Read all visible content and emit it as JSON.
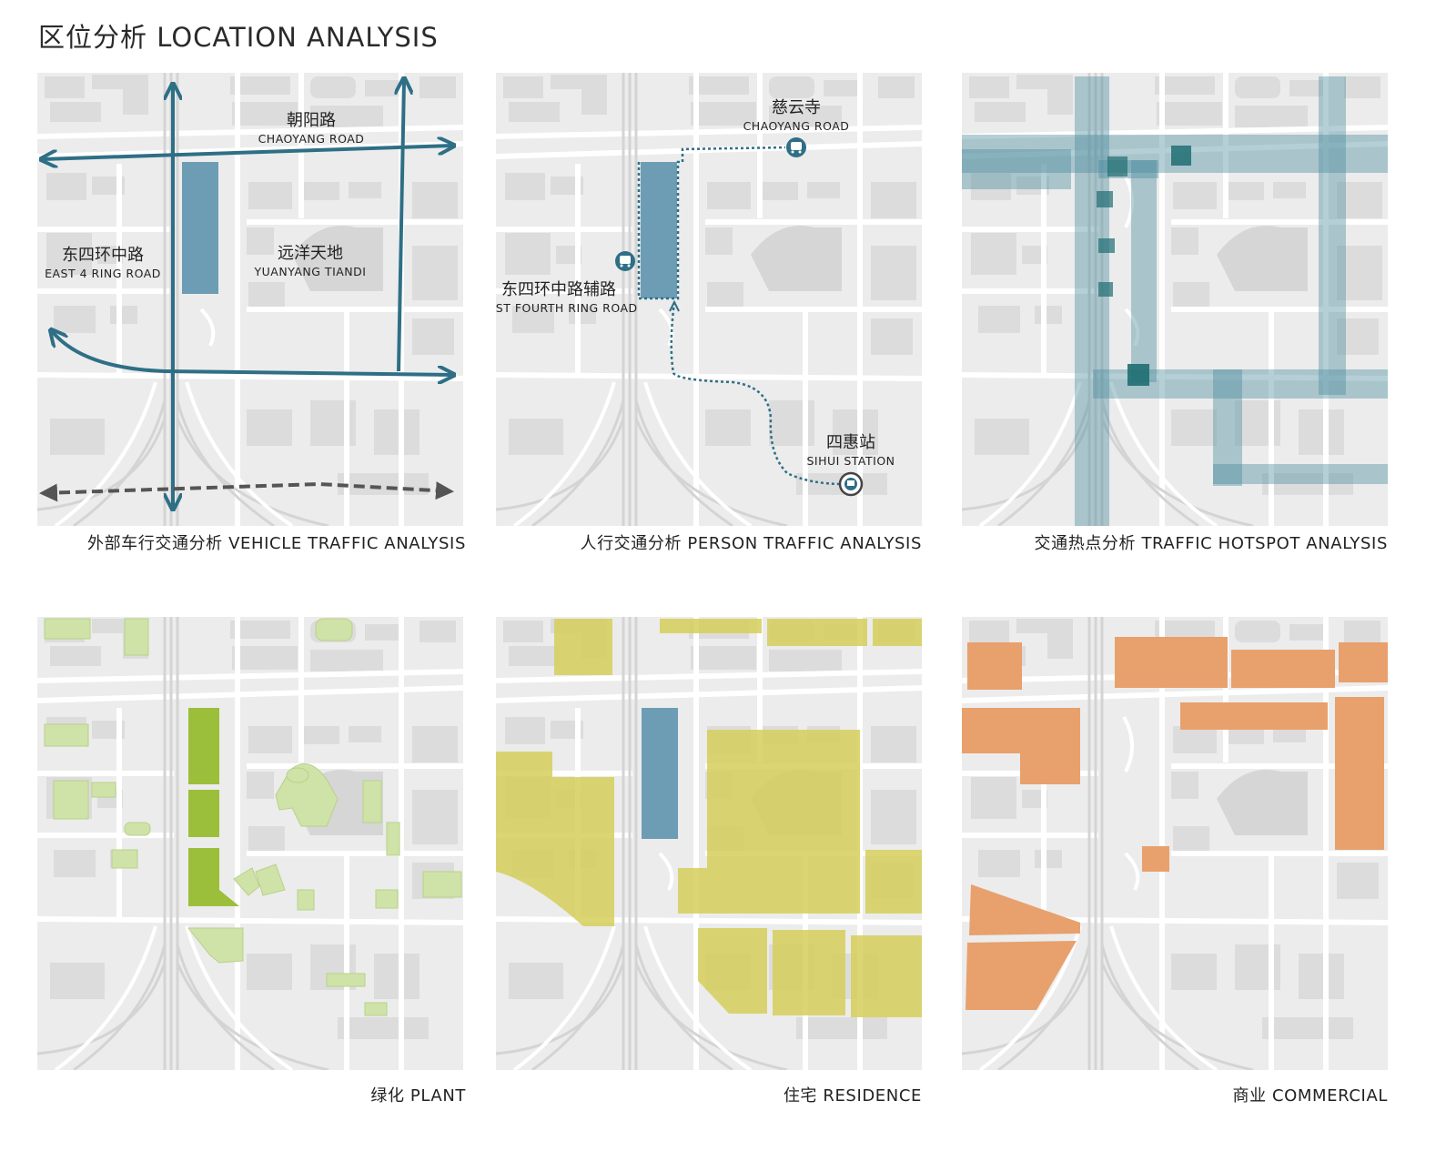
{
  "title": "区位分析 LOCATION ANALYSIS",
  "panels": {
    "vehicle": {
      "caption": "外部车行交通分析 VEHICLE TRAFFIC ANALYSIS",
      "labels": {
        "chaoyang_cn": "朝阳路",
        "chaoyang_en": "CHAOYANG ROAD",
        "east4_cn": "东四环中路",
        "east4_en": "EAST 4 RING ROAD",
        "yuanyang_cn": "远洋天地",
        "yuanyang_en": "YUANYANG TIANDI"
      }
    },
    "person": {
      "caption": "人行交通分析 PERSON TRAFFIC ANALYSIS",
      "labels": {
        "ciyun_cn": "慈云寺",
        "ciyun_en": "CHAOYANG ROAD",
        "fourth_cn": "东四环中路辅路",
        "fourth_en": "EAST FOURTH RING ROAD",
        "sihui_cn": "四惠站",
        "sihui_en": "SIHUI STATION"
      }
    },
    "hotspot": {
      "caption": "交通热点分析 TRAFFIC HOTSPOT ANALYSIS"
    },
    "plant": {
      "caption": "绿化 PLANT"
    },
    "residence": {
      "caption": "住宅 RESIDENCE"
    },
    "commercial": {
      "caption": "商业 COMMERCIAL"
    }
  },
  "colors": {
    "road_arrow": "#2e6f86",
    "site_blue": "#6d9db4",
    "hotspot": "#4d8d9e",
    "plant": "#9bbf3a",
    "plant_light": "#cfe3a8",
    "residence": "#d5cf5a",
    "commercial": "#e8a06c",
    "map_bg": "#ececec",
    "map_block": "#dcdcdc",
    "map_road": "#ffffff"
  }
}
